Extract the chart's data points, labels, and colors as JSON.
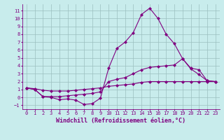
{
  "xlabel": "Windchill (Refroidissement éolien,°C)",
  "background_color": "#c8ecec",
  "line_color": "#800080",
  "grid_color": "#9bbfbf",
  "xlim": [
    -0.5,
    23.5
  ],
  "ylim": [
    -1.5,
    11.8
  ],
  "yticks": [
    -1,
    0,
    1,
    2,
    3,
    4,
    5,
    6,
    7,
    8,
    9,
    10,
    11
  ],
  "xticks": [
    0,
    1,
    2,
    3,
    4,
    5,
    6,
    7,
    8,
    9,
    10,
    11,
    12,
    13,
    14,
    15,
    16,
    17,
    18,
    19,
    20,
    21,
    22,
    23
  ],
  "line1_x": [
    0,
    1,
    2,
    3,
    4,
    5,
    6,
    7,
    8,
    9,
    10,
    11,
    12,
    13,
    14,
    15,
    16,
    17,
    18,
    19,
    20,
    21,
    22,
    23
  ],
  "line1_y": [
    1.2,
    1.0,
    0.1,
    0.0,
    -0.3,
    -0.2,
    -0.35,
    -0.9,
    -0.8,
    -0.1,
    3.7,
    6.2,
    7.0,
    8.2,
    10.5,
    11.3,
    10.0,
    8.0,
    6.8,
    4.9,
    3.6,
    2.9,
    2.1,
    2.0
  ],
  "line2_x": [
    0,
    1,
    2,
    3,
    4,
    5,
    6,
    7,
    8,
    9,
    10,
    11,
    12,
    13,
    14,
    15,
    16,
    17,
    18,
    19,
    20,
    21,
    22,
    23
  ],
  "line2_y": [
    1.2,
    1.0,
    0.1,
    0.1,
    0.1,
    0.2,
    0.3,
    0.4,
    0.5,
    0.7,
    2.0,
    2.3,
    2.5,
    3.0,
    3.5,
    3.8,
    3.9,
    4.0,
    4.1,
    4.9,
    3.7,
    3.5,
    2.1,
    2.0
  ],
  "line3_x": [
    0,
    1,
    2,
    3,
    4,
    5,
    6,
    7,
    8,
    9,
    10,
    11,
    12,
    13,
    14,
    15,
    16,
    17,
    18,
    19,
    20,
    21,
    22,
    23
  ],
  "line3_y": [
    1.2,
    1.1,
    0.9,
    0.8,
    0.8,
    0.8,
    0.9,
    1.0,
    1.1,
    1.2,
    1.4,
    1.5,
    1.6,
    1.7,
    1.9,
    2.0,
    2.0,
    2.0,
    2.0,
    2.0,
    2.0,
    2.0,
    2.0,
    2.0
  ],
  "marker": "D",
  "marker_size": 2.0,
  "line_width": 0.8,
  "font_color": "#800080",
  "tick_fontsize": 5.0,
  "label_fontsize": 6.0
}
